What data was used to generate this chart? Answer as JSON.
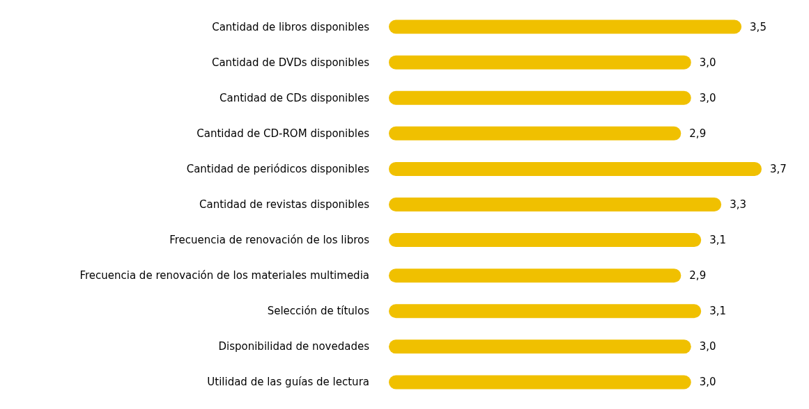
{
  "chart_data": {
    "type": "bar",
    "orientation": "horizontal",
    "data_labels": true,
    "categories": [
      "Cantidad de libros disponibles",
      "Cantidad de DVDs disponibles",
      "Cantidad de CDs disponibles",
      "Cantidad de CD-ROM disponibles",
      "Cantidad de periódicos disponibles",
      "Cantidad de revistas disponibles",
      "Frecuencia de renovación de los libros",
      "Frecuencia de renovación de los materiales multimedia",
      "Selección de títulos",
      "Disponibilidad de novedades",
      "Utilidad de las guías de lectura"
    ],
    "values": [
      3.5,
      3.0,
      3.0,
      2.9,
      3.7,
      3.3,
      3.1,
      2.9,
      3.1,
      3.0,
      3.0
    ],
    "value_labels": [
      "3,5",
      "3,0",
      "3,0",
      "2,9",
      "3,7",
      "3,3",
      "3,1",
      "2,9",
      "3,1",
      "3,0",
      "3,0"
    ],
    "color": "#f0c000"
  }
}
